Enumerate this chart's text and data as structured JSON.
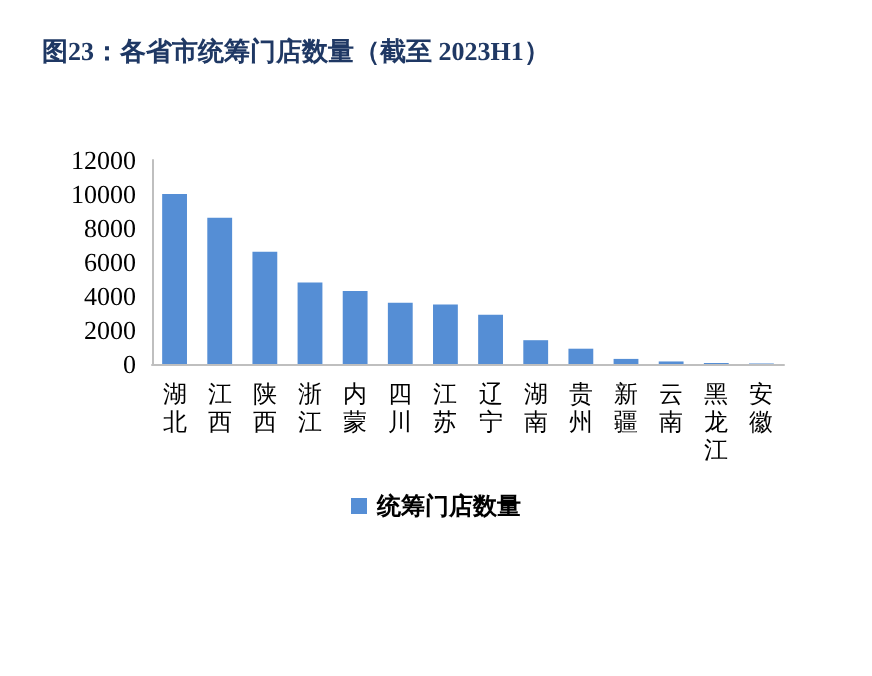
{
  "chart_data": {
    "type": "bar",
    "title": "图23：各省市统筹门店数量（截至 2023H1）",
    "categories": [
      "湖北",
      "江西",
      "陕西",
      "浙江",
      "内蒙",
      "四川",
      "江苏",
      "辽宁",
      "湖南",
      "贵州",
      "新疆",
      "云南",
      "黑龙江",
      "安徽"
    ],
    "series": [
      {
        "name": "统筹门店数量",
        "color": "#558ed5",
        "values": [
          10000,
          8600,
          6600,
          4800,
          4300,
          3600,
          3500,
          2900,
          1400,
          900,
          300,
          150,
          60,
          30
        ]
      }
    ],
    "ylim": [
      0,
      12000
    ],
    "yticks": [
      0,
      2000,
      4000,
      6000,
      8000,
      10000,
      12000
    ],
    "grid": false,
    "legend": "bottom"
  }
}
